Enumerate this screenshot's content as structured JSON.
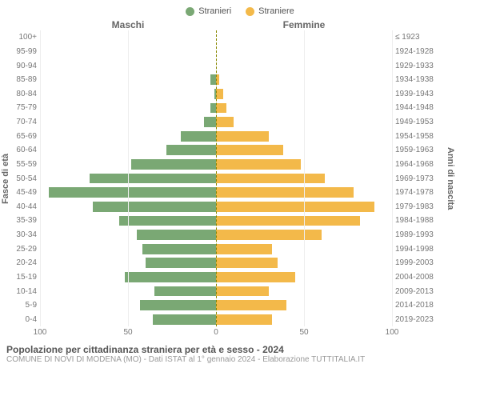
{
  "legend": {
    "male": {
      "label": "Stranieri",
      "color": "#7aa874"
    },
    "female": {
      "label": "Straniere",
      "color": "#f3b94a"
    }
  },
  "headers": {
    "left": "Maschi",
    "right": "Femmine"
  },
  "y_axis_left_label": "Fasce di età",
  "y_axis_right_label": "Anni di nascita",
  "x_axis": {
    "max": 100,
    "ticks": [
      100,
      50,
      0,
      50,
      100
    ]
  },
  "colors": {
    "male_bar": "#7aa874",
    "female_bar": "#f3b94a",
    "grid": "#eeeeee",
    "centerline": "#888800",
    "background": "#ffffff",
    "text": "#666666"
  },
  "rows": [
    {
      "age": "100+",
      "birth": "≤ 1923",
      "m": 0,
      "f": 0
    },
    {
      "age": "95-99",
      "birth": "1924-1928",
      "m": 0,
      "f": 0
    },
    {
      "age": "90-94",
      "birth": "1929-1933",
      "m": 0,
      "f": 0
    },
    {
      "age": "85-89",
      "birth": "1934-1938",
      "m": 3,
      "f": 2
    },
    {
      "age": "80-84",
      "birth": "1939-1943",
      "m": 1,
      "f": 4
    },
    {
      "age": "75-79",
      "birth": "1944-1948",
      "m": 3,
      "f": 6
    },
    {
      "age": "70-74",
      "birth": "1949-1953",
      "m": 7,
      "f": 10
    },
    {
      "age": "65-69",
      "birth": "1954-1958",
      "m": 20,
      "f": 30
    },
    {
      "age": "60-64",
      "birth": "1959-1963",
      "m": 28,
      "f": 38
    },
    {
      "age": "55-59",
      "birth": "1964-1968",
      "m": 48,
      "f": 48
    },
    {
      "age": "50-54",
      "birth": "1969-1973",
      "m": 72,
      "f": 62
    },
    {
      "age": "45-49",
      "birth": "1974-1978",
      "m": 95,
      "f": 78
    },
    {
      "age": "40-44",
      "birth": "1979-1983",
      "m": 70,
      "f": 90
    },
    {
      "age": "35-39",
      "birth": "1984-1988",
      "m": 55,
      "f": 82
    },
    {
      "age": "30-34",
      "birth": "1989-1993",
      "m": 45,
      "f": 60
    },
    {
      "age": "25-29",
      "birth": "1994-1998",
      "m": 42,
      "f": 32
    },
    {
      "age": "20-24",
      "birth": "1999-2003",
      "m": 40,
      "f": 35
    },
    {
      "age": "15-19",
      "birth": "2004-2008",
      "m": 52,
      "f": 45
    },
    {
      "age": "10-14",
      "birth": "2009-2013",
      "m": 35,
      "f": 30
    },
    {
      "age": "5-9",
      "birth": "2014-2018",
      "m": 43,
      "f": 40
    },
    {
      "age": "0-4",
      "birth": "2019-2023",
      "m": 36,
      "f": 32
    }
  ],
  "footer": {
    "title": "Popolazione per cittadinanza straniera per età e sesso - 2024",
    "subtitle": "COMUNE DI NOVI DI MODENA (MO) - Dati ISTAT al 1° gennaio 2024 - Elaborazione TUTTITALIA.IT"
  }
}
